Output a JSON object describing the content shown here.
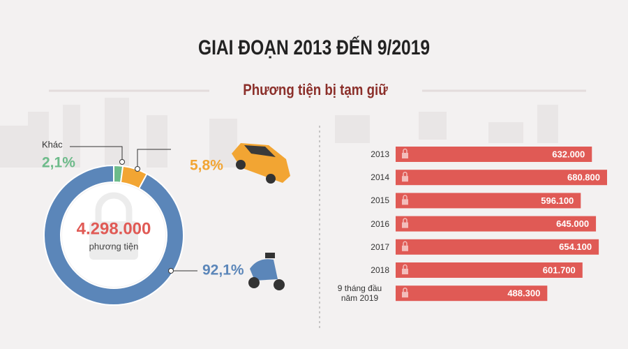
{
  "title": "GIAI ĐOẠN 2013 ĐẾN 9/2019",
  "subtitle": "Phương tiện bị tạm giữ",
  "chart_data": [
    {
      "type": "pie",
      "donut": true,
      "categories": [
        "Khác",
        null,
        null
      ],
      "values": [
        2.1,
        5.8,
        92.1
      ],
      "value_labels": [
        "2,1%",
        "5,8%",
        "92,1%"
      ],
      "colors": [
        "#6dbb8a",
        "#f2a533",
        "#5b86b9"
      ],
      "center_text": "4.298.000",
      "center_subtext": "phương tiện"
    },
    {
      "type": "bar",
      "orientation": "horizontal",
      "categories": [
        "2013",
        "2014",
        "2015",
        "2016",
        "2017",
        "2018",
        "9 tháng đầu năm 2019"
      ],
      "values": [
        632000,
        680800,
        596100,
        645000,
        654100,
        601700,
        488300
      ],
      "value_labels": [
        "632.000",
        "680.800",
        "596.100",
        "645.000",
        "654.100",
        "601.700",
        "488.300"
      ],
      "color": "#e05a55"
    }
  ]
}
